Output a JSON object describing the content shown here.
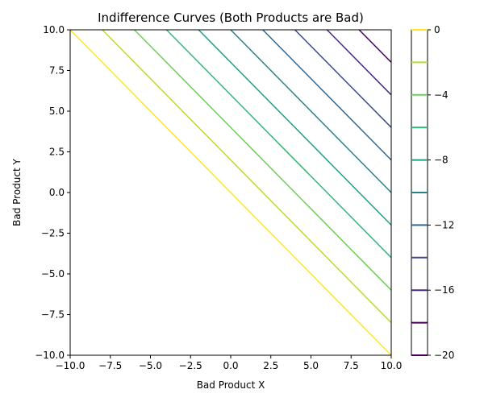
{
  "chart_data": {
    "type": "contour",
    "title": "Indifference Curves (Both Products are Bad)",
    "xlabel": "Bad Product X",
    "ylabel": "Bad Product Y",
    "xlim": [
      -10,
      10
    ],
    "ylim": [
      -10,
      10
    ],
    "function": "U = -(x + y)",
    "xticks": [
      -10,
      -7.5,
      -5,
      -2.5,
      0,
      2.5,
      5,
      7.5,
      10
    ],
    "yticks": [
      -10,
      -7.5,
      -5,
      -2.5,
      0,
      2.5,
      5,
      7.5,
      10
    ],
    "xtick_labels": [
      "−10.0",
      "−7.5",
      "−5.0",
      "−2.5",
      "0.0",
      "2.5",
      "5.0",
      "7.5",
      "10.0"
    ],
    "ytick_labels": [
      "−10.0",
      "−7.5",
      "−5.0",
      "−2.5",
      "0.0",
      "2.5",
      "5.0",
      "7.5",
      "10.0"
    ],
    "levels": [
      {
        "value": 0,
        "color": "#fde725"
      },
      {
        "value": -2,
        "color": "#b5de2b"
      },
      {
        "value": -4,
        "color": "#6ece58"
      },
      {
        "value": -6,
        "color": "#35b779"
      },
      {
        "value": -8,
        "color": "#1f9e89"
      },
      {
        "value": -10,
        "color": "#26828e"
      },
      {
        "value": -12,
        "color": "#31688e"
      },
      {
        "value": -14,
        "color": "#3e4989"
      },
      {
        "value": -16,
        "color": "#482878"
      },
      {
        "value": -18,
        "color": "#440154"
      }
    ],
    "colorbar": {
      "range": [
        -20,
        0
      ],
      "ticks": [
        0,
        -4,
        -8,
        -12,
        -16,
        -20
      ],
      "tick_labels": [
        "0",
        "−4",
        "−8",
        "−12",
        "−16",
        "−20"
      ],
      "line_levels": [
        {
          "value": 0,
          "color": "#fde725"
        },
        {
          "value": -2,
          "color": "#b5de2b"
        },
        {
          "value": -4,
          "color": "#6ece58"
        },
        {
          "value": -6,
          "color": "#35b779"
        },
        {
          "value": -8,
          "color": "#1f9e89"
        },
        {
          "value": -10,
          "color": "#26828e"
        },
        {
          "value": -12,
          "color": "#31688e"
        },
        {
          "value": -14,
          "color": "#3e4989"
        },
        {
          "value": -16,
          "color": "#482878"
        },
        {
          "value": -18,
          "color": "#440154"
        },
        {
          "value": -20,
          "color": "#440154"
        }
      ]
    }
  }
}
